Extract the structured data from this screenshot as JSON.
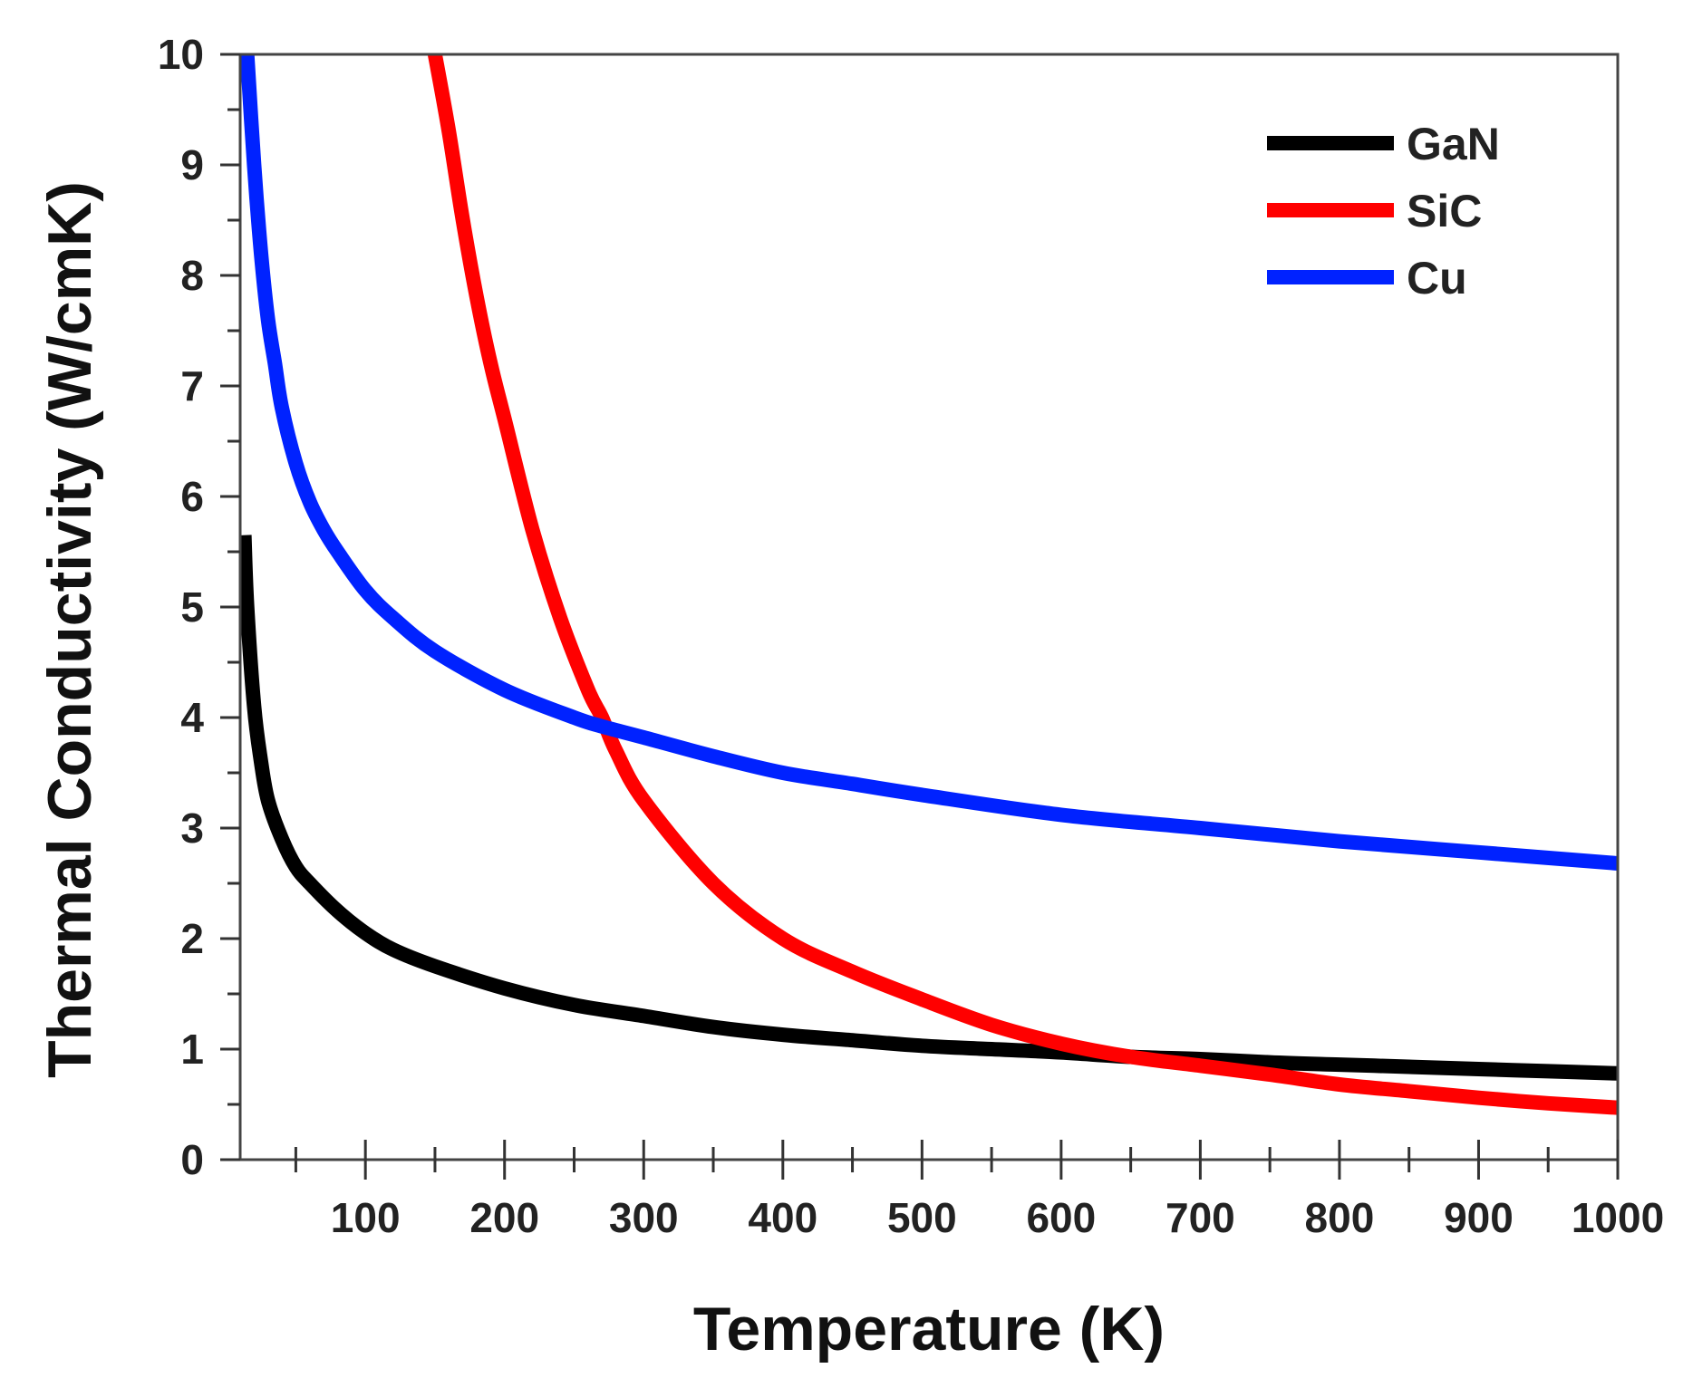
{
  "chart_data": {
    "type": "line",
    "title": "",
    "xlabel": "Temperature (K)",
    "ylabel": "Thermal Conductivity (W/cmK)",
    "xlim": [
      10,
      1000
    ],
    "ylim": [
      0,
      10
    ],
    "xticks": [
      100,
      200,
      300,
      400,
      500,
      600,
      700,
      800,
      900,
      1000
    ],
    "xtick_labels": [
      "100",
      "200",
      "300",
      "400",
      "500",
      "600",
      "700",
      "800",
      "900",
      "1000"
    ],
    "yticks": [
      0,
      1,
      2,
      3,
      4,
      5,
      6,
      7,
      8,
      9,
      10
    ],
    "ytick_labels": [
      "0",
      "1",
      "2",
      "3",
      "4",
      "5",
      "6",
      "7",
      "8",
      "9",
      "10"
    ],
    "legend_position": "top-right",
    "series": [
      {
        "name": "GaN",
        "color": "#000000",
        "x": [
          13,
          15,
          20,
          25,
          30,
          40,
          50,
          60,
          80,
          100,
          120,
          150,
          200,
          250,
          300,
          350,
          400,
          450,
          500,
          550,
          600,
          650,
          700,
          750,
          800,
          850,
          900,
          950,
          1000
        ],
        "y": [
          5.65,
          5.0,
          4.1,
          3.6,
          3.25,
          2.9,
          2.65,
          2.5,
          2.25,
          2.05,
          1.9,
          1.75,
          1.55,
          1.4,
          1.3,
          1.2,
          1.13,
          1.08,
          1.03,
          1.0,
          0.97,
          0.93,
          0.91,
          0.88,
          0.86,
          0.84,
          0.82,
          0.8,
          0.78
        ]
      },
      {
        "name": "SiC",
        "color": "#ff0000",
        "x": [
          150,
          160,
          170,
          180,
          190,
          200,
          220,
          240,
          260,
          270,
          280,
          300,
          350,
          400,
          450,
          500,
          550,
          600,
          650,
          700,
          750,
          800,
          850,
          900,
          950,
          1000
        ],
        "y": [
          10.0,
          9.3,
          8.5,
          7.8,
          7.2,
          6.7,
          5.7,
          4.9,
          4.25,
          4.0,
          3.7,
          3.25,
          2.5,
          2.0,
          1.7,
          1.45,
          1.22,
          1.05,
          0.93,
          0.85,
          0.77,
          0.68,
          0.62,
          0.56,
          0.51,
          0.47
        ]
      },
      {
        "name": "Cu",
        "color": "#0022ff",
        "x": [
          15,
          20,
          25,
          30,
          35,
          40,
          50,
          60,
          70,
          80,
          100,
          120,
          150,
          200,
          250,
          270,
          300,
          350,
          400,
          450,
          500,
          600,
          700,
          800,
          900,
          1000
        ],
        "y": [
          10.0,
          9.0,
          8.2,
          7.6,
          7.2,
          6.8,
          6.3,
          5.95,
          5.7,
          5.5,
          5.15,
          4.9,
          4.6,
          4.25,
          4.0,
          3.92,
          3.82,
          3.65,
          3.5,
          3.4,
          3.3,
          3.12,
          3.0,
          2.88,
          2.78,
          2.68
        ]
      }
    ]
  }
}
